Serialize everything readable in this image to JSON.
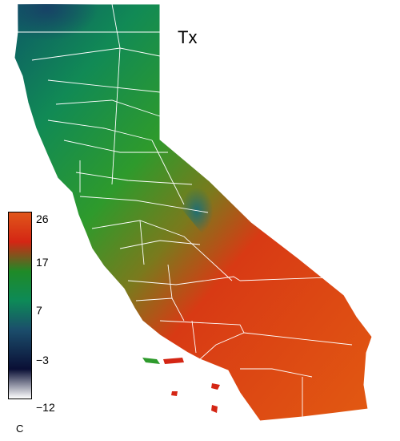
{
  "map": {
    "title": "Tx",
    "variable": "maximum temperature",
    "region": "California",
    "boundaries": "county lines (white)"
  },
  "legend": {
    "unit": "C",
    "min": -12,
    "max": 26,
    "ticks": [
      "26",
      "17",
      "7",
      "−3",
      "−12"
    ],
    "tick_values": [
      26,
      17,
      7,
      -3,
      -12
    ],
    "color_stops": [
      {
        "value": 26,
        "color": "#e0561a"
      },
      {
        "value": 20,
        "color": "#d42614"
      },
      {
        "value": 14,
        "color": "#1f8a27"
      },
      {
        "value": 8,
        "color": "#0d8a57"
      },
      {
        "value": 2,
        "color": "#1b4d6b"
      },
      {
        "value": -6,
        "color": "#0a0f35"
      },
      {
        "value": -12,
        "color": "#ffffff"
      }
    ]
  },
  "colors": {
    "county_lines": "#ffffff",
    "background": "#ffffff"
  }
}
